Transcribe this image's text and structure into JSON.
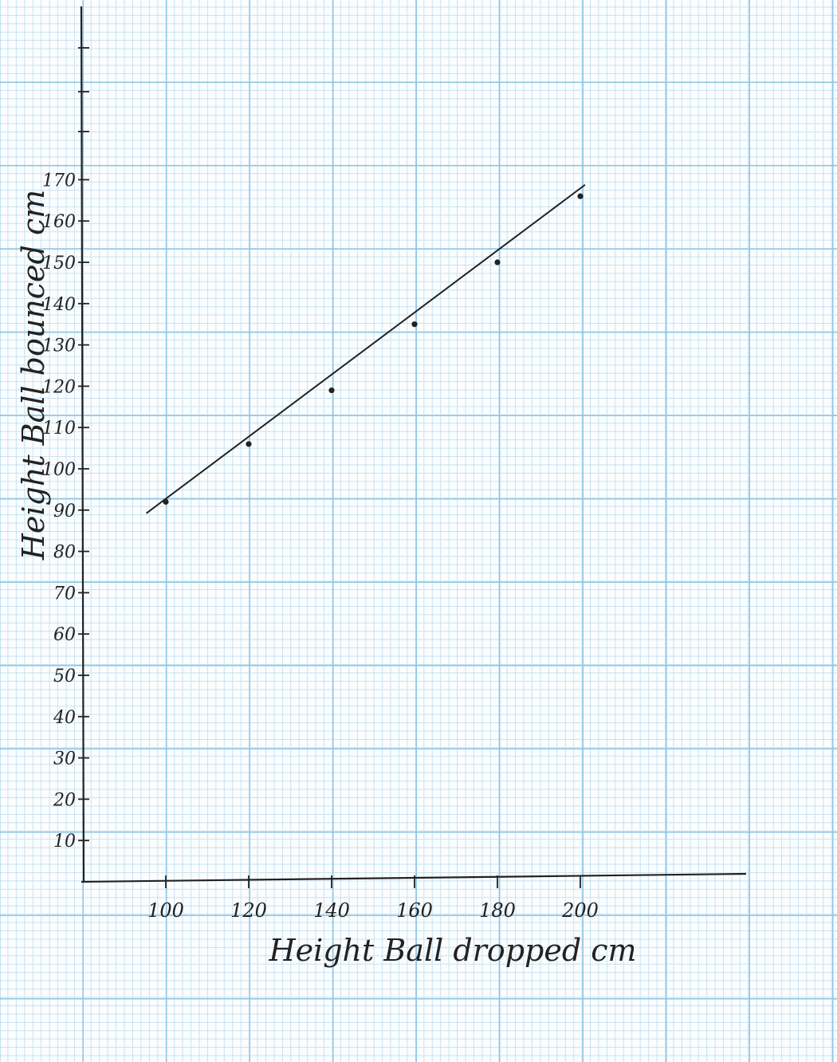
{
  "chart_data": {
    "type": "scatter",
    "xlabel": "Height Ball dropped cm",
    "ylabel": "Height Ball bounced cm",
    "xlim": [
      80,
      240
    ],
    "ylim": [
      0,
      200
    ],
    "x_ticks": [
      100,
      120,
      140,
      160,
      180,
      200
    ],
    "x_tick_labels": [
      "100",
      "120",
      "140",
      "160",
      "180",
      "200"
    ],
    "y_ticks": [
      10,
      20,
      30,
      40,
      50,
      60,
      70,
      80,
      90,
      100,
      110,
      120,
      130,
      140,
      150,
      160,
      170
    ],
    "y_tick_labels": [
      "10",
      "20",
      "30",
      "40",
      "50",
      "60",
      "70",
      "80",
      "90",
      "100",
      "110",
      "120",
      "130",
      "140",
      "150",
      "160",
      "170"
    ],
    "points": [
      {
        "x": 100,
        "y": 92
      },
      {
        "x": 120,
        "y": 106
      },
      {
        "x": 140,
        "y": 119
      },
      {
        "x": 160,
        "y": 135
      },
      {
        "x": 180,
        "y": 150
      },
      {
        "x": 200,
        "y": 166
      }
    ],
    "trendline": {
      "x": [
        98,
        200
      ],
      "y": [
        90,
        168
      ]
    },
    "grid": true,
    "colors": {
      "ink": "#222222",
      "grid_major": "#8fc6e6",
      "grid_minor": "#c6e2f2"
    }
  }
}
